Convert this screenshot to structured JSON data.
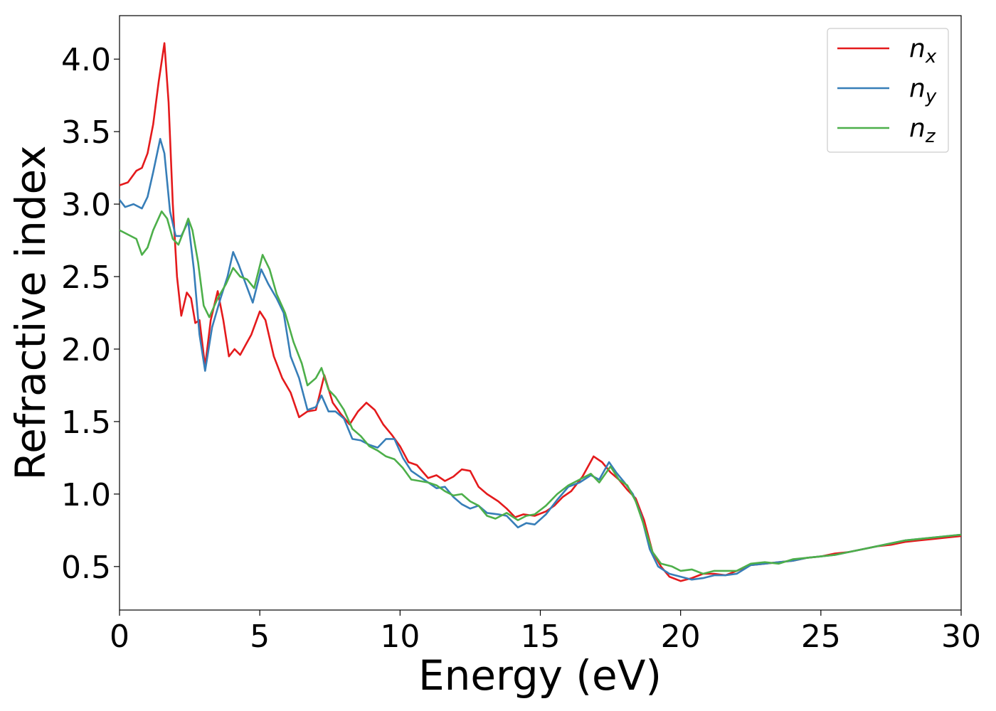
{
  "chart_data": {
    "type": "line",
    "xlabel": "Energy (eV)",
    "ylabel": "Refractive index",
    "xlim": [
      0,
      30
    ],
    "ylim": [
      0.2,
      4.3
    ],
    "x_ticks": [
      0,
      5,
      10,
      15,
      20,
      25,
      30
    ],
    "x_tick_labels": [
      "0",
      "5",
      "10",
      "15",
      "20",
      "25",
      "30"
    ],
    "y_ticks": [
      0.5,
      1.0,
      1.5,
      2.0,
      2.5,
      3.0,
      3.5,
      4.0
    ],
    "y_tick_labels": [
      "0.5",
      "1.0",
      "1.5",
      "2.0",
      "2.5",
      "3.0",
      "3.5",
      "4.0"
    ],
    "grid": false,
    "legend_position": "top-right",
    "series": [
      {
        "name": "n_x",
        "label_base": "n",
        "label_sub": "x",
        "color": "#e41a1c",
        "points": [
          [
            0,
            3.13
          ],
          [
            0.3,
            3.15
          ],
          [
            0.6,
            3.23
          ],
          [
            0.8,
            3.25
          ],
          [
            1.0,
            3.35
          ],
          [
            1.2,
            3.55
          ],
          [
            1.4,
            3.85
          ],
          [
            1.6,
            4.11
          ],
          [
            1.75,
            3.7
          ],
          [
            1.9,
            3.0
          ],
          [
            2.05,
            2.5
          ],
          [
            2.2,
            2.23
          ],
          [
            2.4,
            2.39
          ],
          [
            2.55,
            2.35
          ],
          [
            2.7,
            2.18
          ],
          [
            2.85,
            2.2
          ],
          [
            3.05,
            1.88
          ],
          [
            3.25,
            2.2
          ],
          [
            3.5,
            2.4
          ],
          [
            3.7,
            2.2
          ],
          [
            3.9,
            1.95
          ],
          [
            4.1,
            2.0
          ],
          [
            4.3,
            1.96
          ],
          [
            4.5,
            2.03
          ],
          [
            4.7,
            2.1
          ],
          [
            5.0,
            2.26
          ],
          [
            5.2,
            2.2
          ],
          [
            5.5,
            1.95
          ],
          [
            5.8,
            1.8
          ],
          [
            6.1,
            1.7
          ],
          [
            6.4,
            1.53
          ],
          [
            6.7,
            1.57
          ],
          [
            7.0,
            1.58
          ],
          [
            7.3,
            1.82
          ],
          [
            7.6,
            1.63
          ],
          [
            7.9,
            1.55
          ],
          [
            8.2,
            1.48
          ],
          [
            8.5,
            1.57
          ],
          [
            8.8,
            1.63
          ],
          [
            9.1,
            1.58
          ],
          [
            9.4,
            1.48
          ],
          [
            9.7,
            1.41
          ],
          [
            10.0,
            1.33
          ],
          [
            10.3,
            1.22
          ],
          [
            10.6,
            1.2
          ],
          [
            11.0,
            1.11
          ],
          [
            11.3,
            1.13
          ],
          [
            11.6,
            1.09
          ],
          [
            11.9,
            1.12
          ],
          [
            12.2,
            1.17
          ],
          [
            12.5,
            1.16
          ],
          [
            12.8,
            1.05
          ],
          [
            13.1,
            1.0
          ],
          [
            13.5,
            0.95
          ],
          [
            13.8,
            0.9
          ],
          [
            14.1,
            0.84
          ],
          [
            14.4,
            0.86
          ],
          [
            14.8,
            0.85
          ],
          [
            15.2,
            0.88
          ],
          [
            15.5,
            0.92
          ],
          [
            15.8,
            0.98
          ],
          [
            16.1,
            1.02
          ],
          [
            16.5,
            1.12
          ],
          [
            16.9,
            1.26
          ],
          [
            17.2,
            1.22
          ],
          [
            17.5,
            1.15
          ],
          [
            17.8,
            1.1
          ],
          [
            18.1,
            1.03
          ],
          [
            18.4,
            0.97
          ],
          [
            18.7,
            0.82
          ],
          [
            19.0,
            0.6
          ],
          [
            19.3,
            0.5
          ],
          [
            19.6,
            0.43
          ],
          [
            20.0,
            0.4
          ],
          [
            20.4,
            0.42
          ],
          [
            20.8,
            0.45
          ],
          [
            21.2,
            0.45
          ],
          [
            21.6,
            0.44
          ],
          [
            22.0,
            0.47
          ],
          [
            22.5,
            0.51
          ],
          [
            23.0,
            0.52
          ],
          [
            23.5,
            0.53
          ],
          [
            24.0,
            0.54
          ],
          [
            24.5,
            0.56
          ],
          [
            25.0,
            0.57
          ],
          [
            25.5,
            0.59
          ],
          [
            26.0,
            0.6
          ],
          [
            26.5,
            0.62
          ],
          [
            27.0,
            0.64
          ],
          [
            27.5,
            0.65
          ],
          [
            28.0,
            0.67
          ],
          [
            28.5,
            0.68
          ],
          [
            29.0,
            0.69
          ],
          [
            29.5,
            0.7
          ],
          [
            30.0,
            0.71
          ]
        ]
      },
      {
        "name": "n_y",
        "label_base": "n",
        "label_sub": "y",
        "color": "#377eb8",
        "points": [
          [
            0,
            3.03
          ],
          [
            0.2,
            2.98
          ],
          [
            0.5,
            3.0
          ],
          [
            0.8,
            2.97
          ],
          [
            1.0,
            3.05
          ],
          [
            1.2,
            3.22
          ],
          [
            1.45,
            3.45
          ],
          [
            1.6,
            3.35
          ],
          [
            1.8,
            2.95
          ],
          [
            2.0,
            2.78
          ],
          [
            2.2,
            2.78
          ],
          [
            2.45,
            2.88
          ],
          [
            2.65,
            2.55
          ],
          [
            2.85,
            2.1
          ],
          [
            3.05,
            1.85
          ],
          [
            3.3,
            2.15
          ],
          [
            3.6,
            2.35
          ],
          [
            3.85,
            2.5
          ],
          [
            4.05,
            2.67
          ],
          [
            4.25,
            2.58
          ],
          [
            4.5,
            2.45
          ],
          [
            4.75,
            2.32
          ],
          [
            5.05,
            2.55
          ],
          [
            5.3,
            2.45
          ],
          [
            5.6,
            2.35
          ],
          [
            5.85,
            2.25
          ],
          [
            6.1,
            1.95
          ],
          [
            6.4,
            1.8
          ],
          [
            6.7,
            1.58
          ],
          [
            7.0,
            1.6
          ],
          [
            7.2,
            1.68
          ],
          [
            7.45,
            1.57
          ],
          [
            7.7,
            1.57
          ],
          [
            8.0,
            1.52
          ],
          [
            8.3,
            1.38
          ],
          [
            8.6,
            1.37
          ],
          [
            8.9,
            1.34
          ],
          [
            9.2,
            1.32
          ],
          [
            9.5,
            1.38
          ],
          [
            9.8,
            1.38
          ],
          [
            10.1,
            1.25
          ],
          [
            10.4,
            1.16
          ],
          [
            10.7,
            1.12
          ],
          [
            11.0,
            1.08
          ],
          [
            11.3,
            1.04
          ],
          [
            11.6,
            1.05
          ],
          [
            11.9,
            0.98
          ],
          [
            12.2,
            0.93
          ],
          [
            12.5,
            0.9
          ],
          [
            12.8,
            0.92
          ],
          [
            13.1,
            0.87
          ],
          [
            13.5,
            0.86
          ],
          [
            13.8,
            0.85
          ],
          [
            14.2,
            0.77
          ],
          [
            14.5,
            0.8
          ],
          [
            14.8,
            0.79
          ],
          [
            15.2,
            0.86
          ],
          [
            15.6,
            0.96
          ],
          [
            16.0,
            1.05
          ],
          [
            16.4,
            1.08
          ],
          [
            16.8,
            1.13
          ],
          [
            17.1,
            1.1
          ],
          [
            17.45,
            1.22
          ],
          [
            17.7,
            1.15
          ],
          [
            18.0,
            1.08
          ],
          [
            18.3,
            1.0
          ],
          [
            18.6,
            0.85
          ],
          [
            18.9,
            0.62
          ],
          [
            19.2,
            0.5
          ],
          [
            19.6,
            0.45
          ],
          [
            20.0,
            0.43
          ],
          [
            20.4,
            0.41
          ],
          [
            20.8,
            0.42
          ],
          [
            21.2,
            0.44
          ],
          [
            21.6,
            0.44
          ],
          [
            22.0,
            0.45
          ],
          [
            22.5,
            0.51
          ],
          [
            23.0,
            0.52
          ],
          [
            23.5,
            0.53
          ],
          [
            24.0,
            0.54
          ],
          [
            24.5,
            0.56
          ],
          [
            25.0,
            0.57
          ],
          [
            25.5,
            0.58
          ],
          [
            26.0,
            0.6
          ],
          [
            26.5,
            0.62
          ],
          [
            27.0,
            0.64
          ],
          [
            27.5,
            0.66
          ],
          [
            28.0,
            0.68
          ],
          [
            28.5,
            0.69
          ],
          [
            29.0,
            0.7
          ],
          [
            29.5,
            0.71
          ],
          [
            30.0,
            0.72
          ]
        ]
      },
      {
        "name": "n_z",
        "label_base": "n",
        "label_sub": "z",
        "color": "#4daf4a",
        "points": [
          [
            0,
            2.82
          ],
          [
            0.3,
            2.79
          ],
          [
            0.6,
            2.76
          ],
          [
            0.8,
            2.65
          ],
          [
            1.0,
            2.7
          ],
          [
            1.2,
            2.82
          ],
          [
            1.5,
            2.95
          ],
          [
            1.7,
            2.9
          ],
          [
            1.9,
            2.76
          ],
          [
            2.1,
            2.72
          ],
          [
            2.3,
            2.82
          ],
          [
            2.45,
            2.9
          ],
          [
            2.6,
            2.82
          ],
          [
            2.8,
            2.6
          ],
          [
            3.0,
            2.3
          ],
          [
            3.2,
            2.22
          ],
          [
            3.5,
            2.35
          ],
          [
            3.8,
            2.45
          ],
          [
            4.05,
            2.56
          ],
          [
            4.3,
            2.5
          ],
          [
            4.55,
            2.48
          ],
          [
            4.8,
            2.42
          ],
          [
            5.1,
            2.65
          ],
          [
            5.35,
            2.55
          ],
          [
            5.6,
            2.38
          ],
          [
            5.9,
            2.25
          ],
          [
            6.2,
            2.05
          ],
          [
            6.5,
            1.9
          ],
          [
            6.7,
            1.75
          ],
          [
            7.0,
            1.8
          ],
          [
            7.2,
            1.87
          ],
          [
            7.45,
            1.72
          ],
          [
            7.7,
            1.67
          ],
          [
            8.0,
            1.58
          ],
          [
            8.3,
            1.45
          ],
          [
            8.6,
            1.4
          ],
          [
            8.9,
            1.33
          ],
          [
            9.2,
            1.3
          ],
          [
            9.5,
            1.26
          ],
          [
            9.8,
            1.24
          ],
          [
            10.1,
            1.18
          ],
          [
            10.4,
            1.1
          ],
          [
            10.7,
            1.09
          ],
          [
            11.0,
            1.08
          ],
          [
            11.3,
            1.06
          ],
          [
            11.6,
            1.02
          ],
          [
            11.9,
            0.99
          ],
          [
            12.2,
            1.0
          ],
          [
            12.5,
            0.95
          ],
          [
            12.8,
            0.92
          ],
          [
            13.1,
            0.85
          ],
          [
            13.4,
            0.83
          ],
          [
            13.8,
            0.87
          ],
          [
            14.2,
            0.82
          ],
          [
            14.5,
            0.85
          ],
          [
            14.8,
            0.86
          ],
          [
            15.2,
            0.92
          ],
          [
            15.6,
            1.0
          ],
          [
            16.0,
            1.06
          ],
          [
            16.4,
            1.1
          ],
          [
            16.8,
            1.14
          ],
          [
            17.1,
            1.08
          ],
          [
            17.5,
            1.19
          ],
          [
            17.8,
            1.1
          ],
          [
            18.1,
            1.06
          ],
          [
            18.4,
            0.95
          ],
          [
            18.7,
            0.78
          ],
          [
            19.0,
            0.6
          ],
          [
            19.3,
            0.52
          ],
          [
            19.7,
            0.5
          ],
          [
            20.0,
            0.47
          ],
          [
            20.4,
            0.48
          ],
          [
            20.8,
            0.45
          ],
          [
            21.2,
            0.47
          ],
          [
            21.6,
            0.47
          ],
          [
            22.0,
            0.47
          ],
          [
            22.5,
            0.52
          ],
          [
            23.0,
            0.53
          ],
          [
            23.5,
            0.52
          ],
          [
            24.0,
            0.55
          ],
          [
            24.5,
            0.56
          ],
          [
            25.0,
            0.57
          ],
          [
            25.5,
            0.58
          ],
          [
            26.0,
            0.6
          ],
          [
            26.5,
            0.62
          ],
          [
            27.0,
            0.64
          ],
          [
            27.5,
            0.66
          ],
          [
            28.0,
            0.68
          ],
          [
            28.5,
            0.69
          ],
          [
            29.0,
            0.7
          ],
          [
            29.5,
            0.71
          ],
          [
            30.0,
            0.72
          ]
        ]
      }
    ]
  }
}
